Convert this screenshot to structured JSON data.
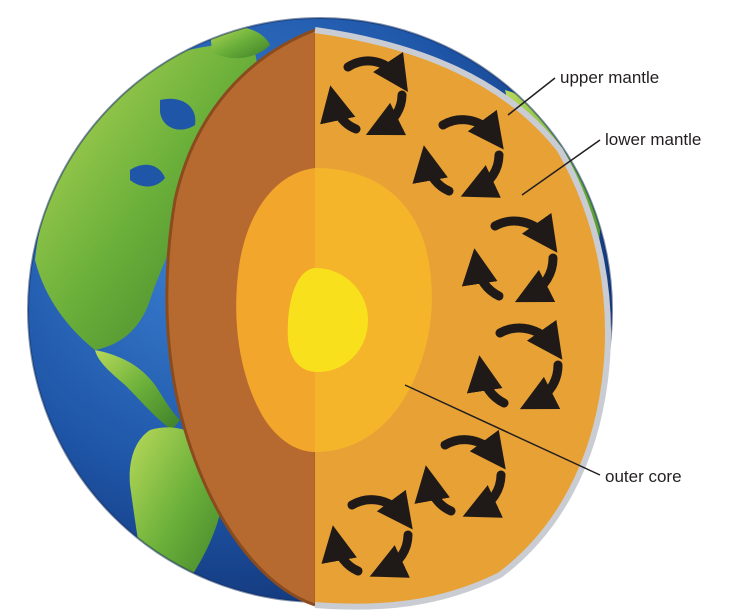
{
  "labels": {
    "upper_mantle": "upper mantle",
    "lower_mantle": "lower mantle",
    "outer_core": "outer core"
  },
  "colors": {
    "ocean": "#1f56a8",
    "land": "#6bb03a",
    "crust": "#b66a2f",
    "mantle": "#e7a135",
    "outer_core": "#f5b52b",
    "inner_core": "#f8e01c",
    "convection_arrows": "#1f1a17"
  }
}
